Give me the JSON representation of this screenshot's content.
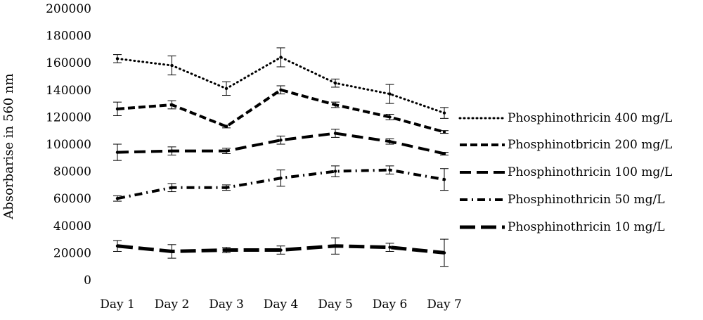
{
  "chart_data": {
    "type": "line",
    "title": "",
    "xlabel": "",
    "ylabel": "Absorbarise in 560 nm",
    "ylim": [
      0,
      200000
    ],
    "yticks": [
      0,
      20000,
      40000,
      60000,
      80000,
      100000,
      120000,
      140000,
      160000,
      180000,
      200000
    ],
    "categories": [
      "Day 1",
      "Day 2",
      "Day 3",
      "Day 4",
      "Day 5",
      "Day 6",
      "Day 7"
    ],
    "grid": false,
    "legend_position": "right",
    "series": [
      {
        "name": "Phosphinothricin 400 mg/L",
        "style": "dotted",
        "color": "#000000",
        "values": [
          163000,
          158000,
          141000,
          164000,
          145000,
          137000,
          123000
        ],
        "errors": [
          3000,
          7000,
          5000,
          7000,
          3000,
          7000,
          4000
        ]
      },
      {
        "name": "Phosphinotbricin 200 mg/L",
        "style": "dashed",
        "color": "#000000",
        "values": [
          126000,
          129000,
          113000,
          140000,
          129000,
          120000,
          109000
        ],
        "errors": [
          5000,
          3000,
          1000,
          3000,
          2000,
          2000,
          1000
        ]
      },
      {
        "name": "Phosphinothricin 100 mg/L",
        "style": "long-dashed",
        "color": "#000000",
        "values": [
          94000,
          95000,
          95000,
          103000,
          108000,
          102000,
          93000
        ],
        "errors": [
          6000,
          3000,
          2000,
          3000,
          3000,
          2000,
          1000
        ]
      },
      {
        "name": "Phosphinothricin 50 mg/L",
        "style": "dash-dot",
        "color": "#000000",
        "values": [
          60000,
          68000,
          68000,
          75000,
          80000,
          81000,
          74000
        ],
        "errors": [
          2000,
          3000,
          2000,
          6000,
          4000,
          3000,
          8000
        ]
      },
      {
        "name": "Phosphinothricin 10 mg/L",
        "style": "heavy-dashed",
        "color": "#000000",
        "values": [
          25000,
          21000,
          22000,
          22000,
          25000,
          24000,
          20000
        ],
        "errors": [
          4000,
          5000,
          2000,
          3000,
          6000,
          3000,
          10000
        ]
      }
    ]
  }
}
